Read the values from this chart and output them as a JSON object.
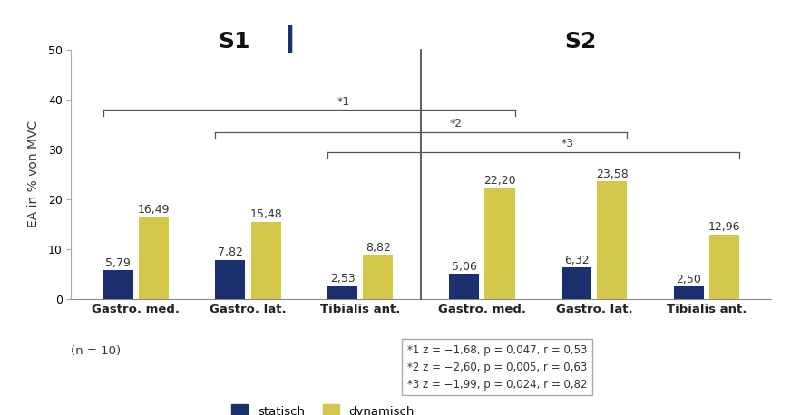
{
  "s1_static": [
    5.79,
    7.82,
    2.53
  ],
  "s1_dynamic": [
    16.49,
    15.48,
    8.82
  ],
  "s2_static": [
    5.06,
    6.32,
    2.5
  ],
  "s2_dynamic": [
    22.2,
    23.58,
    12.96
  ],
  "categories": [
    "Gastro. med.",
    "Gastro. lat.",
    "Tibialis ant."
  ],
  "color_static": "#1C2F6E",
  "color_dynamic": "#D4C84A",
  "ylabel": "EA in % von MVC",
  "ylim": [
    0,
    50
  ],
  "yticks": [
    0,
    10,
    20,
    30,
    40,
    50
  ],
  "s1_label": "S1",
  "s2_label": "S2",
  "legend_static": "statisch",
  "legend_dynamic": "dynamisch",
  "n_label": "(n = 10)",
  "stats_text_lines": [
    [
      "*",
      "1",
      " z = −1,68, p = 0,047, r = 0,53"
    ],
    [
      "*",
      "2",
      " z = −2,60, p = 0,005, r = 0,63"
    ],
    [
      "*",
      "3",
      " z = −1,99, p = 0,024, r = 0,82"
    ]
  ],
  "bg_color": "#ffffff"
}
